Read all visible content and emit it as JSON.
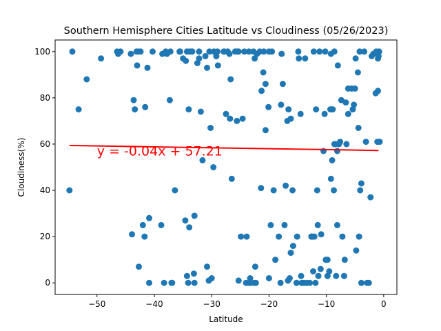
{
  "chart_data": {
    "type": "scatter",
    "title": "Southern Hemisphere Cities Latitude vs Cloudiness (05/26/2023)",
    "xlabel": "Latitude",
    "ylabel": "Cloudiness(%)",
    "xlim": [
      -57.3,
      2.3
    ],
    "ylim": [
      -5.0,
      105.0
    ],
    "xticks": [
      -50,
      -40,
      -30,
      -20,
      -10,
      0
    ],
    "yticks": [
      0,
      20,
      40,
      60,
      80,
      100
    ],
    "grid": false,
    "point_color": "#1f77b4",
    "regression": {
      "slope": -0.04,
      "intercept": 57.21,
      "x_range": [
        -54.8,
        -0.9
      ],
      "color": "#ff0000",
      "equation": "y = -0.04x + 57.21",
      "label_position": [
        -50,
        55
      ]
    },
    "x": [
      -54.8,
      -54.3,
      -53.2,
      -51.8,
      -49.3,
      -46.5,
      -46.3,
      -45.9,
      -43.4,
      -43.0,
      -42.8,
      -42.7,
      -41.6,
      -41.2,
      -40.9,
      -43.9,
      -42.0,
      -40.9,
      -38.3,
      -38.0,
      -37.8,
      -37.3,
      -37.0,
      -36.9,
      -35.5,
      -35.0,
      -34.5,
      -34.0,
      -33.9,
      -33.5,
      -33.0,
      -32.5,
      -32.2,
      -31.9,
      -31.6,
      -34.1,
      -30.8,
      -30.5,
      -30.2,
      -29.7,
      -29.2,
      -29.0,
      -28.9,
      -27.8,
      -27.5,
      -27.2,
      -26.9,
      -26.7,
      -26.5,
      -25.9,
      -25.6,
      -25.3,
      -24.6,
      -24.0,
      -23.3,
      -22.7,
      -22.4,
      -22.1,
      -21.6,
      -21.3,
      -21.0,
      -20.6,
      -20.0,
      -19.7,
      -19.2,
      -19.5,
      -18.3,
      -17.9,
      -17.6,
      -17.3,
      -16.6,
      -16.2,
      -15.8,
      -15.2,
      -14.8,
      -14.5,
      -13.9,
      -12.9,
      -12.6,
      -12.4,
      -11.9,
      -11.6,
      -11.0,
      -10.5,
      -10.3,
      -9.8,
      -9.3,
      -9.2,
      -9.0,
      -8.7,
      -8.3,
      -8.1,
      -7.6,
      -7.2,
      -6.8,
      -6.2,
      -5.6,
      -5.0,
      -4.8,
      -4.5,
      -4.2,
      -3.9,
      -3.4,
      -2.9,
      -2.6,
      -2.1,
      -1.8,
      -1.3,
      -1.0,
      -0.9,
      -0.7,
      -0.8,
      -1.0,
      -1.1,
      -1.4,
      -2.3,
      -3.9,
      -3.1,
      -4.4,
      -4.9,
      -5.2,
      -6.6,
      -7.4,
      -8.0,
      -8.6,
      -9.2,
      -10.2,
      -11.2,
      -12.2,
      -13.7,
      -14.9,
      -16.2,
      -17.1,
      -18.9,
      -20.1,
      -20.6,
      -21.4,
      -22.5,
      -23.5,
      -24.3,
      -25.6,
      -26.8,
      -27.9,
      -29.6,
      -30.4,
      -31.1,
      -32.2,
      -34.3,
      -35.6,
      -37.2,
      -38.6,
      -40.3,
      -42.4,
      -43.6,
      -44.1,
      -43.1,
      -41.7,
      -38.8,
      -36.4,
      -34.3,
      -33.1,
      -33.9,
      -33.4,
      -34.6,
      -33.0,
      -30.8,
      -30.0,
      -25.3,
      -24.9,
      -23.9,
      -23.5,
      -23.2,
      -22.6,
      -22.3,
      -20.9,
      -18.0,
      -17.8,
      -16.7,
      -16.4,
      -15.2,
      -14.3,
      -13.4,
      -12.1,
      -11.5,
      -9.8,
      -8.6,
      -8.1,
      -6.5,
      -6.2,
      -5.4,
      -4.3,
      -11.8,
      -12.6,
      -8.9,
      -8.4,
      -7.8,
      -10.9,
      -10.1,
      -9.5,
      -6.9,
      -4.1,
      -16.8,
      -15.1,
      -14.4,
      -12.3,
      -11.4,
      -15.9,
      -20.0
    ],
    "y": [
      40,
      100,
      75,
      88,
      97,
      100,
      99,
      100,
      75,
      94,
      100,
      7,
      76,
      93,
      28,
      21,
      25,
      0,
      0,
      100,
      99,
      79,
      0,
      0,
      100,
      97,
      96,
      75,
      24,
      100,
      0,
      95,
      100,
      74,
      53,
      0,
      93,
      1,
      67,
      50,
      98,
      100,
      94,
      100,
      73,
      100,
      99,
      88,
      45,
      100,
      70,
      100,
      71,
      0,
      2,
      100,
      7,
      99,
      100,
      83,
      91,
      86,
      100,
      25,
      40,
      100,
      20,
      77,
      86,
      25,
      75,
      13,
      16,
      0,
      97,
      73,
      0,
      0,
      20,
      20,
      0,
      40,
      6,
      57,
      73,
      10,
      75,
      45,
      53,
      40,
      3,
      57,
      61,
      20,
      10,
      73,
      84,
      84,
      14,
      91,
      100,
      0,
      100,
      0,
      0,
      98,
      99,
      100,
      97,
      98,
      61,
      100,
      83,
      61,
      82,
      37,
      43,
      61,
      67,
      97,
      77,
      78,
      79,
      94,
      100,
      99,
      100,
      100,
      100,
      97,
      100,
      71,
      42,
      10,
      76,
      66,
      41,
      97,
      100,
      100,
      100,
      71,
      100,
      100,
      100,
      98,
      97,
      100,
      100,
      100,
      99,
      100,
      100,
      79,
      99,
      100,
      20,
      25,
      40,
      3,
      4,
      100,
      100,
      27,
      29,
      7,
      2,
      1,
      20,
      20,
      0,
      0,
      0,
      0,
      100,
      0,
      99,
      1,
      2,
      0,
      0,
      0,
      20,
      25,
      3,
      60,
      25,
      60,
      84,
      75,
      20,
      75,
      20,
      75,
      60,
      60,
      21,
      10,
      5,
      3,
      40,
      70,
      20,
      3,
      5,
      3,
      40,
      2
    ],
    "x_note": "",
    "y_note": ""
  }
}
